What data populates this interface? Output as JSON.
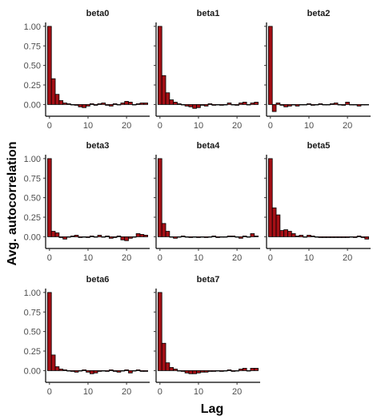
{
  "colors": {
    "bar_fill": "#a50f15",
    "bar_stroke": "#000000",
    "background": "#ffffff",
    "tick_text": "#4d4d4d"
  },
  "chart_data": {
    "type": "bar",
    "layout": "facet-grid-3x3",
    "xlabel": "Lag",
    "ylabel": "Avg.  autocorrelation",
    "xlim": [
      -1,
      26
    ],
    "ylim": [
      -0.15,
      1.05
    ],
    "xticks": [
      0,
      10,
      20
    ],
    "yticks": [
      0,
      0.25,
      0.5,
      0.75,
      1
    ],
    "ytick_labels": [
      "0.00",
      "0.25",
      "0.50",
      "0.75",
      "1.00"
    ],
    "lags": [
      0,
      1,
      2,
      3,
      4,
      5,
      6,
      7,
      8,
      9,
      10,
      11,
      12,
      13,
      14,
      15,
      16,
      17,
      18,
      19,
      20,
      21,
      22,
      23,
      24,
      25
    ],
    "panels": [
      {
        "name": "beta0",
        "values": [
          1.0,
          0.33,
          0.13,
          0.05,
          0.02,
          0.01,
          0.0,
          -0.01,
          -0.03,
          -0.04,
          -0.02,
          0.01,
          -0.01,
          0.01,
          0.02,
          -0.01,
          -0.02,
          0.01,
          0.0,
          0.02,
          0.04,
          0.03,
          0.0,
          0.01,
          0.02,
          0.02
        ]
      },
      {
        "name": "beta1",
        "values": [
          1.0,
          0.37,
          0.15,
          0.06,
          0.03,
          0.01,
          0.0,
          -0.02,
          -0.03,
          -0.05,
          -0.04,
          -0.01,
          -0.02,
          0.01,
          -0.01,
          0.0,
          -0.01,
          0.0,
          0.02,
          0.0,
          -0.01,
          0.02,
          0.03,
          0.0,
          0.02,
          0.03
        ]
      },
      {
        "name": "beta2",
        "values": [
          1.0,
          -0.09,
          0.02,
          -0.01,
          -0.03,
          -0.02,
          0.0,
          -0.02,
          0.0,
          0.0,
          0.01,
          -0.01,
          0.0,
          0.01,
          0.0,
          0.0,
          0.01,
          0.02,
          0.0,
          -0.01,
          0.03,
          0.0,
          0.0,
          -0.02,
          0.0,
          0.0
        ]
      },
      {
        "name": "beta3",
        "values": [
          1.0,
          0.07,
          0.05,
          -0.01,
          -0.03,
          0.0,
          0.01,
          0.02,
          -0.01,
          0.0,
          -0.01,
          0.01,
          0.0,
          0.02,
          0.0,
          0.01,
          -0.02,
          -0.01,
          0.01,
          -0.04,
          -0.05,
          -0.02,
          0.0,
          0.04,
          0.03,
          0.02
        ]
      },
      {
        "name": "beta4",
        "values": [
          1.0,
          0.17,
          0.07,
          0.0,
          -0.02,
          0.0,
          0.01,
          0.0,
          -0.01,
          0.0,
          -0.01,
          0.0,
          -0.01,
          0.0,
          0.01,
          -0.01,
          0.0,
          0.0,
          0.01,
          0.01,
          0.0,
          -0.02,
          0.01,
          0.0,
          0.04,
          0.01
        ]
      },
      {
        "name": "beta5",
        "values": [
          1.0,
          0.37,
          0.28,
          0.08,
          0.09,
          0.07,
          0.04,
          0.01,
          0.02,
          0.0,
          0.02,
          0.01,
          0.0,
          -0.01,
          -0.01,
          -0.01,
          -0.01,
          -0.01,
          -0.01,
          -0.01,
          -0.01,
          0.0,
          -0.01,
          0.01,
          -0.01,
          -0.03
        ]
      },
      {
        "name": "beta6",
        "values": [
          1.0,
          0.2,
          0.05,
          0.02,
          0.01,
          0.0,
          -0.01,
          -0.02,
          0.0,
          0.01,
          -0.02,
          -0.04,
          -0.03,
          -0.01,
          0.0,
          -0.01,
          0.01,
          -0.01,
          -0.02,
          0.0,
          0.01,
          -0.03,
          0.0,
          0.01,
          -0.01,
          -0.01
        ]
      },
      {
        "name": "beta7",
        "values": [
          1.0,
          0.35,
          0.1,
          0.04,
          0.02,
          0.0,
          -0.01,
          -0.03,
          -0.04,
          -0.04,
          -0.03,
          -0.02,
          -0.02,
          -0.01,
          -0.01,
          0.0,
          -0.01,
          0.0,
          0.01,
          -0.01,
          0.0,
          0.02,
          0.03,
          0.0,
          0.03,
          0.03
        ]
      }
    ]
  }
}
